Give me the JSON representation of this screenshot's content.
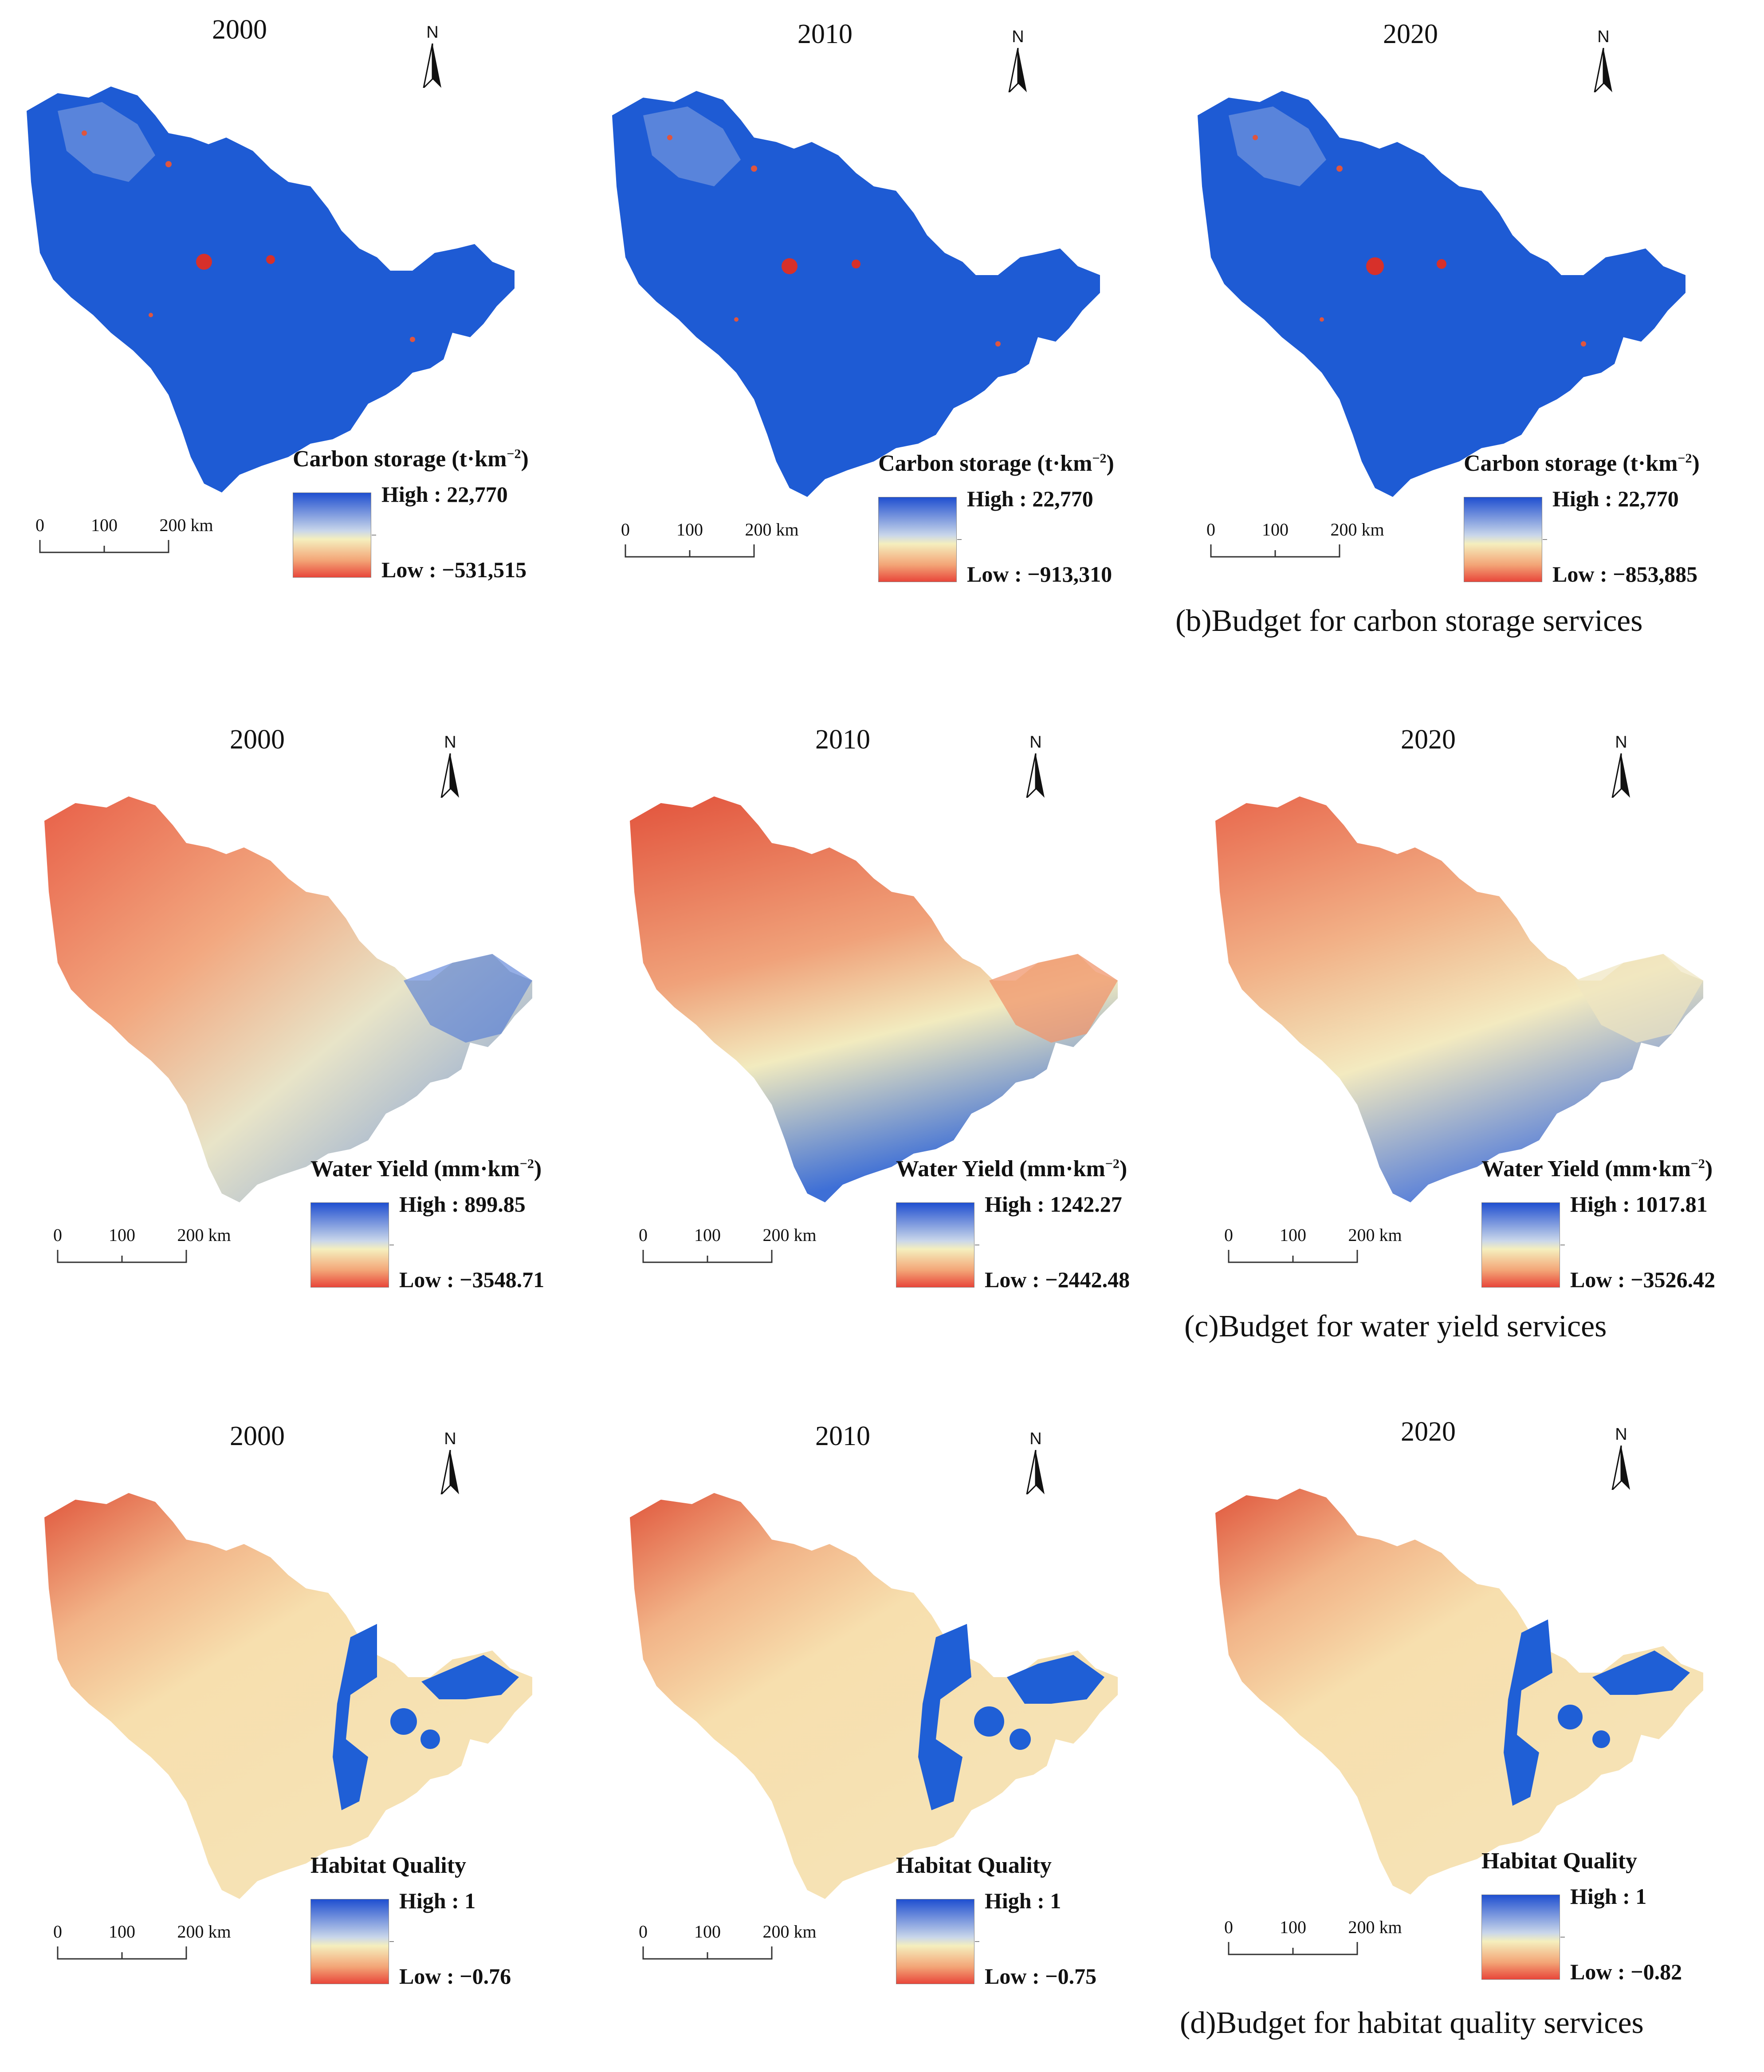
{
  "compass_label": "N",
  "scale_bar": {
    "labels": [
      "0",
      "100",
      "200 km"
    ]
  },
  "sections": [
    {
      "key": "b",
      "caption": "(b)Budget for carbon storage services",
      "legend_title": "Carbon storage",
      "legend_unit": "(t·km",
      "legend_exp": "−2",
      "unit_close": ")",
      "panels": [
        {
          "year": "2000",
          "high": "High : 22,770",
          "low": "Low : −531,515"
        },
        {
          "year": "2010",
          "high": "High : 22,770",
          "low": "Low : −913,310"
        },
        {
          "year": "2020",
          "high": "High : 22,770",
          "low": "Low : −853,885"
        }
      ]
    },
    {
      "key": "c",
      "caption": "(c)Budget for water yield services",
      "legend_title": "Water Yield",
      "legend_unit": "(mm·km",
      "legend_exp": "−2",
      "unit_close": ")",
      "panels": [
        {
          "year": "2000",
          "high": "High : 899.85",
          "low": "Low : −3548.71"
        },
        {
          "year": "2010",
          "high": "High : 1242.27",
          "low": "Low : −2442.48"
        },
        {
          "year": "2020",
          "high": "High : 1017.81",
          "low": "Low : −3526.42"
        }
      ]
    },
    {
      "key": "d",
      "caption": "(d)Budget for habitat quality services",
      "legend_title": "Habitat Quality",
      "legend_unit": "",
      "legend_exp": "",
      "unit_close": "",
      "panels": [
        {
          "year": "2000",
          "high": "High : 1",
          "low": "Low : −0.76"
        },
        {
          "year": "2010",
          "high": "High : 1",
          "low": "Low : −0.75"
        },
        {
          "year": "2020",
          "high": "High : 1",
          "low": "Low : −0.82"
        }
      ]
    }
  ],
  "colors": {
    "high": "#1f5fd6",
    "mid": "#f5efbe",
    "low": "#e8463a",
    "carbon_fill": "#1e5bd4",
    "habitat_fill": "#f6dcaa"
  }
}
